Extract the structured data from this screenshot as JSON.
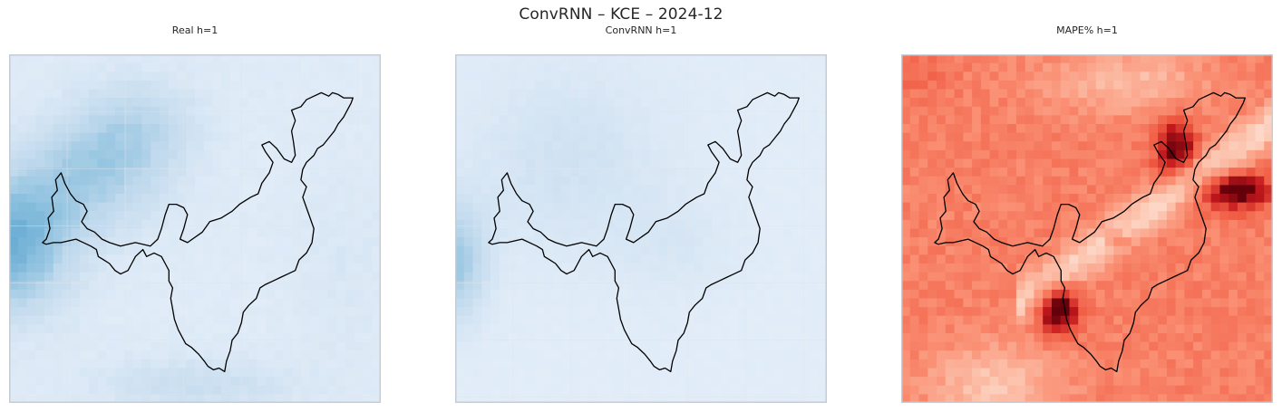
{
  "figure": {
    "title": "ConvRNN – KCE – 2024-12"
  },
  "chart_data": [
    {
      "type": "heatmap",
      "title": "Real h=1",
      "colormap": "Blues",
      "grid": true,
      "seed_offset": 1
    },
    {
      "type": "heatmap",
      "title": "ConvRNN h=1",
      "colormap": "Blues",
      "grid": true,
      "seed_offset": 2
    },
    {
      "type": "heatmap",
      "title": "MAPE% h=1",
      "colormap": "Reds",
      "grid": false,
      "seed_offset": 3
    }
  ],
  "colors": {
    "frame": "#c7ccd3",
    "boundary": "#000000",
    "grid": "#dfe5ec"
  }
}
